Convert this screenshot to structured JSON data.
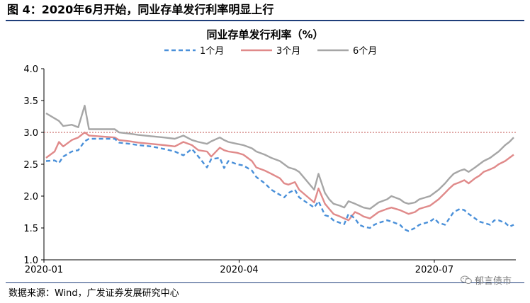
{
  "figure": {
    "title": "图 4：2020年6月开始，同业存单发行利率明显上行",
    "source": "数据来源：Wind，广发证券发展研究中心",
    "watermark": "郁言债市",
    "watermark_icon": "wechat-icon"
  },
  "chart_data": {
    "type": "line",
    "title": "同业存单发行利率（%）",
    "xlabel": "",
    "ylabel": "",
    "x_ticks": [
      "2020-01",
      "2020-04",
      "2020-07"
    ],
    "y_ticks": [
      "1.0",
      "1.5",
      "2.0",
      "2.5",
      "3.0",
      "3.5",
      "4.0"
    ],
    "ylim": [
      1.0,
      4.0
    ],
    "x_range": [
      "2020-01-01",
      "2020-08-08"
    ],
    "grid": false,
    "legend": "top-center",
    "reference_line": {
      "y": 3.0,
      "color": "#c0504d",
      "style": "dotted"
    },
    "series": [
      {
        "name": "1个月",
        "color": "#4a90d9",
        "style": "dashed",
        "points": [
          [
            "2020-01-02",
            2.55
          ],
          [
            "2020-01-06",
            2.56
          ],
          [
            "2020-01-08",
            2.52
          ],
          [
            "2020-01-10",
            2.62
          ],
          [
            "2020-01-14",
            2.7
          ],
          [
            "2020-01-17",
            2.72
          ],
          [
            "2020-01-20",
            2.86
          ],
          [
            "2020-01-22",
            2.9
          ],
          [
            "2020-02-03",
            2.9
          ],
          [
            "2020-02-05",
            2.84
          ],
          [
            "2020-02-10",
            2.82
          ],
          [
            "2020-02-14",
            2.8
          ],
          [
            "2020-02-20",
            2.78
          ],
          [
            "2020-02-26",
            2.74
          ],
          [
            "2020-03-02",
            2.7
          ],
          [
            "2020-03-06",
            2.64
          ],
          [
            "2020-03-10",
            2.74
          ],
          [
            "2020-03-13",
            2.62
          ],
          [
            "2020-03-17",
            2.45
          ],
          [
            "2020-03-19",
            2.58
          ],
          [
            "2020-03-23",
            2.6
          ],
          [
            "2020-03-25",
            2.44
          ],
          [
            "2020-03-27",
            2.55
          ],
          [
            "2020-03-31",
            2.5
          ],
          [
            "2020-04-03",
            2.48
          ],
          [
            "2020-04-07",
            2.4
          ],
          [
            "2020-04-09",
            2.3
          ],
          [
            "2020-04-13",
            2.2
          ],
          [
            "2020-04-16",
            2.1
          ],
          [
            "2020-04-20",
            2.02
          ],
          [
            "2020-04-22",
            1.98
          ],
          [
            "2020-04-24",
            2.05
          ],
          [
            "2020-04-27",
            2.1
          ],
          [
            "2020-04-29",
            1.98
          ],
          [
            "2020-05-06",
            1.82
          ],
          [
            "2020-05-08",
            1.92
          ],
          [
            "2020-05-11",
            1.7
          ],
          [
            "2020-05-13",
            1.68
          ],
          [
            "2020-05-15",
            1.62
          ],
          [
            "2020-05-18",
            1.58
          ],
          [
            "2020-05-20",
            1.56
          ],
          [
            "2020-05-22",
            1.72
          ],
          [
            "2020-05-25",
            1.65
          ],
          [
            "2020-05-27",
            1.55
          ],
          [
            "2020-05-29",
            1.52
          ],
          [
            "2020-06-01",
            1.5
          ],
          [
            "2020-06-03",
            1.55
          ],
          [
            "2020-06-05",
            1.58
          ],
          [
            "2020-06-09",
            1.62
          ],
          [
            "2020-06-11",
            1.6
          ],
          [
            "2020-06-15",
            1.55
          ],
          [
            "2020-06-17",
            1.48
          ],
          [
            "2020-06-19",
            1.45
          ],
          [
            "2020-06-22",
            1.5
          ],
          [
            "2020-06-24",
            1.55
          ],
          [
            "2020-06-29",
            1.6
          ],
          [
            "2020-07-01",
            1.65
          ],
          [
            "2020-07-03",
            1.58
          ],
          [
            "2020-07-06",
            1.55
          ],
          [
            "2020-07-08",
            1.65
          ],
          [
            "2020-07-10",
            1.75
          ],
          [
            "2020-07-13",
            1.8
          ],
          [
            "2020-07-15",
            1.78
          ],
          [
            "2020-07-17",
            1.72
          ],
          [
            "2020-07-20",
            1.65
          ],
          [
            "2020-07-22",
            1.6
          ],
          [
            "2020-07-24",
            1.58
          ],
          [
            "2020-07-27",
            1.55
          ],
          [
            "2020-07-29",
            1.62
          ],
          [
            "2020-07-31",
            1.62
          ],
          [
            "2020-08-03",
            1.58
          ],
          [
            "2020-08-05",
            1.52
          ],
          [
            "2020-08-07",
            1.55
          ]
        ]
      },
      {
        "name": "3个月",
        "color": "#e08a8a",
        "style": "solid",
        "points": [
          [
            "2020-01-02",
            2.6
          ],
          [
            "2020-01-06",
            2.7
          ],
          [
            "2020-01-08",
            2.85
          ],
          [
            "2020-01-10",
            2.78
          ],
          [
            "2020-01-14",
            2.88
          ],
          [
            "2020-01-17",
            2.92
          ],
          [
            "2020-01-20",
            3.0
          ],
          [
            "2020-01-22",
            2.95
          ],
          [
            "2020-02-03",
            2.92
          ],
          [
            "2020-02-05",
            2.88
          ],
          [
            "2020-02-10",
            2.86
          ],
          [
            "2020-02-14",
            2.84
          ],
          [
            "2020-02-20",
            2.82
          ],
          [
            "2020-02-26",
            2.8
          ],
          [
            "2020-03-02",
            2.78
          ],
          [
            "2020-03-06",
            2.85
          ],
          [
            "2020-03-10",
            2.8
          ],
          [
            "2020-03-13",
            2.72
          ],
          [
            "2020-03-17",
            2.7
          ],
          [
            "2020-03-19",
            2.62
          ],
          [
            "2020-03-23",
            2.76
          ],
          [
            "2020-03-25",
            2.72
          ],
          [
            "2020-03-27",
            2.7
          ],
          [
            "2020-03-31",
            2.68
          ],
          [
            "2020-04-03",
            2.65
          ],
          [
            "2020-04-07",
            2.55
          ],
          [
            "2020-04-09",
            2.45
          ],
          [
            "2020-04-13",
            2.4
          ],
          [
            "2020-04-16",
            2.35
          ],
          [
            "2020-04-20",
            2.28
          ],
          [
            "2020-04-22",
            2.2
          ],
          [
            "2020-04-24",
            2.18
          ],
          [
            "2020-04-27",
            2.22
          ],
          [
            "2020-04-29",
            2.1
          ],
          [
            "2020-05-06",
            1.9
          ],
          [
            "2020-05-08",
            2.12
          ],
          [
            "2020-05-11",
            1.88
          ],
          [
            "2020-05-13",
            1.8
          ],
          [
            "2020-05-15",
            1.72
          ],
          [
            "2020-05-18",
            1.68
          ],
          [
            "2020-05-20",
            1.65
          ],
          [
            "2020-05-22",
            1.62
          ],
          [
            "2020-05-25",
            1.75
          ],
          [
            "2020-05-27",
            1.72
          ],
          [
            "2020-05-29",
            1.68
          ],
          [
            "2020-06-01",
            1.65
          ],
          [
            "2020-06-03",
            1.7
          ],
          [
            "2020-06-05",
            1.75
          ],
          [
            "2020-06-09",
            1.8
          ],
          [
            "2020-06-11",
            1.82
          ],
          [
            "2020-06-15",
            1.78
          ],
          [
            "2020-06-17",
            1.75
          ],
          [
            "2020-06-19",
            1.72
          ],
          [
            "2020-06-22",
            1.75
          ],
          [
            "2020-06-24",
            1.8
          ],
          [
            "2020-06-29",
            1.85
          ],
          [
            "2020-07-01",
            1.9
          ],
          [
            "2020-07-03",
            1.95
          ],
          [
            "2020-07-06",
            2.05
          ],
          [
            "2020-07-08",
            2.12
          ],
          [
            "2020-07-10",
            2.18
          ],
          [
            "2020-07-13",
            2.22
          ],
          [
            "2020-07-15",
            2.25
          ],
          [
            "2020-07-17",
            2.2
          ],
          [
            "2020-07-20",
            2.28
          ],
          [
            "2020-07-22",
            2.32
          ],
          [
            "2020-07-24",
            2.38
          ],
          [
            "2020-07-27",
            2.42
          ],
          [
            "2020-07-29",
            2.45
          ],
          [
            "2020-07-31",
            2.5
          ],
          [
            "2020-08-03",
            2.55
          ],
          [
            "2020-08-05",
            2.6
          ],
          [
            "2020-08-07",
            2.65
          ]
        ]
      },
      {
        "name": "6个月",
        "color": "#a6a6a6",
        "style": "solid",
        "points": [
          [
            "2020-01-02",
            3.3
          ],
          [
            "2020-01-06",
            3.22
          ],
          [
            "2020-01-08",
            3.18
          ],
          [
            "2020-01-10",
            3.1
          ],
          [
            "2020-01-14",
            3.12
          ],
          [
            "2020-01-17",
            3.08
          ],
          [
            "2020-01-20",
            3.42
          ],
          [
            "2020-01-22",
            3.05
          ],
          [
            "2020-02-03",
            3.05
          ],
          [
            "2020-02-05",
            3.0
          ],
          [
            "2020-02-10",
            2.98
          ],
          [
            "2020-02-14",
            2.96
          ],
          [
            "2020-02-20",
            2.94
          ],
          [
            "2020-02-26",
            2.92
          ],
          [
            "2020-03-02",
            2.9
          ],
          [
            "2020-03-06",
            2.95
          ],
          [
            "2020-03-10",
            2.88
          ],
          [
            "2020-03-13",
            2.85
          ],
          [
            "2020-03-17",
            2.82
          ],
          [
            "2020-03-19",
            2.86
          ],
          [
            "2020-03-23",
            2.92
          ],
          [
            "2020-03-25",
            2.88
          ],
          [
            "2020-03-27",
            2.85
          ],
          [
            "2020-03-31",
            2.82
          ],
          [
            "2020-04-03",
            2.8
          ],
          [
            "2020-04-07",
            2.75
          ],
          [
            "2020-04-09",
            2.7
          ],
          [
            "2020-04-13",
            2.65
          ],
          [
            "2020-04-16",
            2.6
          ],
          [
            "2020-04-20",
            2.55
          ],
          [
            "2020-04-22",
            2.5
          ],
          [
            "2020-04-24",
            2.45
          ],
          [
            "2020-04-27",
            2.42
          ],
          [
            "2020-04-29",
            2.38
          ],
          [
            "2020-05-06",
            2.1
          ],
          [
            "2020-05-08",
            2.35
          ],
          [
            "2020-05-11",
            2.05
          ],
          [
            "2020-05-13",
            1.95
          ],
          [
            "2020-05-15",
            1.88
          ],
          [
            "2020-05-18",
            1.85
          ],
          [
            "2020-05-20",
            1.82
          ],
          [
            "2020-05-22",
            1.92
          ],
          [
            "2020-05-25",
            1.88
          ],
          [
            "2020-05-27",
            1.85
          ],
          [
            "2020-05-29",
            1.82
          ],
          [
            "2020-06-01",
            1.8
          ],
          [
            "2020-06-03",
            1.85
          ],
          [
            "2020-06-05",
            1.9
          ],
          [
            "2020-06-09",
            1.95
          ],
          [
            "2020-06-11",
            2.0
          ],
          [
            "2020-06-15",
            1.95
          ],
          [
            "2020-06-17",
            1.9
          ],
          [
            "2020-06-19",
            1.88
          ],
          [
            "2020-06-22",
            1.9
          ],
          [
            "2020-06-24",
            1.95
          ],
          [
            "2020-06-29",
            2.0
          ],
          [
            "2020-07-01",
            2.05
          ],
          [
            "2020-07-03",
            2.1
          ],
          [
            "2020-07-06",
            2.2
          ],
          [
            "2020-07-08",
            2.28
          ],
          [
            "2020-07-10",
            2.35
          ],
          [
            "2020-07-13",
            2.4
          ],
          [
            "2020-07-15",
            2.42
          ],
          [
            "2020-07-17",
            2.38
          ],
          [
            "2020-07-20",
            2.45
          ],
          [
            "2020-07-22",
            2.5
          ],
          [
            "2020-07-24",
            2.55
          ],
          [
            "2020-07-27",
            2.6
          ],
          [
            "2020-07-29",
            2.65
          ],
          [
            "2020-07-31",
            2.7
          ],
          [
            "2020-08-03",
            2.8
          ],
          [
            "2020-08-05",
            2.85
          ],
          [
            "2020-08-07",
            2.92
          ]
        ]
      }
    ]
  }
}
